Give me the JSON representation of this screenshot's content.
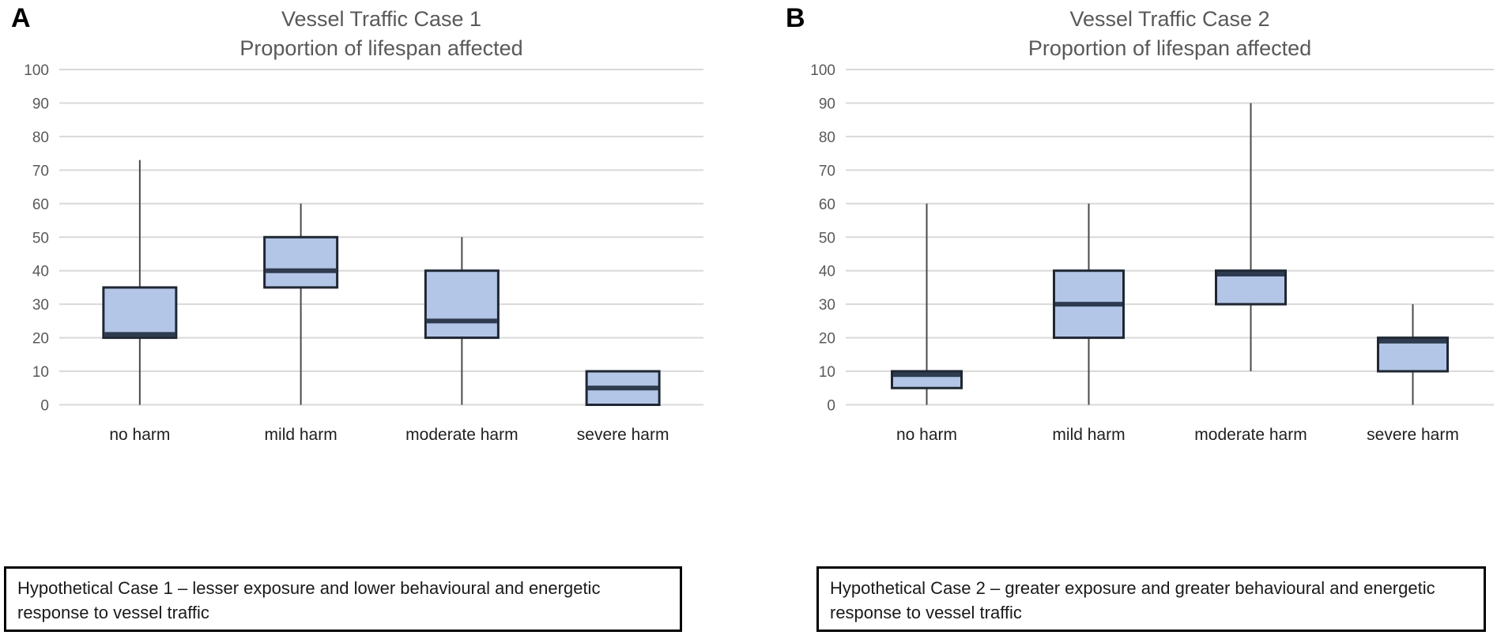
{
  "page": {
    "background": "#ffffff"
  },
  "colors": {
    "box_fill": "#b4c6e7",
    "box_border": "#1f2733",
    "median_line": "#2f3c50",
    "whisker": "#4a4a4a",
    "gridline": "#d9d9d9",
    "axis_tick_label": "#595959",
    "title_text": "#595959",
    "category_label": "#1f1f1f",
    "caption_text": "#1a1a1a",
    "caption_border": "#000000"
  },
  "chart_data": [
    {
      "type": "boxplot",
      "panel_label": "A",
      "title": "Vessel Traffic Case 1",
      "subtitle": "Proportion of lifespan affected",
      "ylim": [
        0,
        100
      ],
      "ytick_step": 10,
      "ytick_labels": [
        "0",
        "10",
        "20",
        "30",
        "40",
        "50",
        "60",
        "70",
        "80",
        "90",
        "100"
      ],
      "grid": true,
      "legend": "none",
      "categories": [
        "no harm",
        "mild harm",
        "moderate harm",
        "severe harm"
      ],
      "series": [
        {
          "category": "no harm",
          "whisker_low": 0,
          "q1": 20,
          "median": 21,
          "q3": 35,
          "whisker_high": 73
        },
        {
          "category": "mild harm",
          "whisker_low": 0,
          "q1": 35,
          "median": 40,
          "q3": 50,
          "whisker_high": 60
        },
        {
          "category": "moderate harm",
          "whisker_low": 0,
          "q1": 20,
          "median": 25,
          "q3": 40,
          "whisker_high": 50
        },
        {
          "category": "severe harm",
          "whisker_low": 0,
          "q1": 0,
          "median": 5,
          "q3": 10,
          "whisker_high": 10
        }
      ],
      "caption": "Hypothetical Case 1 – lesser exposure and lower behavioural and energetic response to vessel traffic"
    },
    {
      "type": "boxplot",
      "panel_label": "B",
      "title": "Vessel Traffic Case 2",
      "subtitle": "Proportion of lifespan affected",
      "ylim": [
        0,
        100
      ],
      "ytick_step": 10,
      "ytick_labels": [
        "0",
        "10",
        "20",
        "30",
        "40",
        "50",
        "60",
        "70",
        "80",
        "90",
        "100"
      ],
      "grid": true,
      "legend": "none",
      "categories": [
        "no harm",
        "mild harm",
        "moderate harm",
        "severe harm"
      ],
      "series": [
        {
          "category": "no harm",
          "whisker_low": 0,
          "q1": 5,
          "median": 9,
          "q3": 10,
          "whisker_high": 60
        },
        {
          "category": "mild harm",
          "whisker_low": 0,
          "q1": 20,
          "median": 30,
          "q3": 40,
          "whisker_high": 60
        },
        {
          "category": "moderate harm",
          "whisker_low": 10,
          "q1": 30,
          "median": 39,
          "q3": 40,
          "whisker_high": 90
        },
        {
          "category": "severe harm",
          "whisker_low": 0,
          "q1": 10,
          "median": 19,
          "q3": 20,
          "whisker_high": 30
        }
      ],
      "caption": "Hypothetical Case 2 – greater exposure and greater behavioural and energetic response to vessel traffic"
    }
  ]
}
